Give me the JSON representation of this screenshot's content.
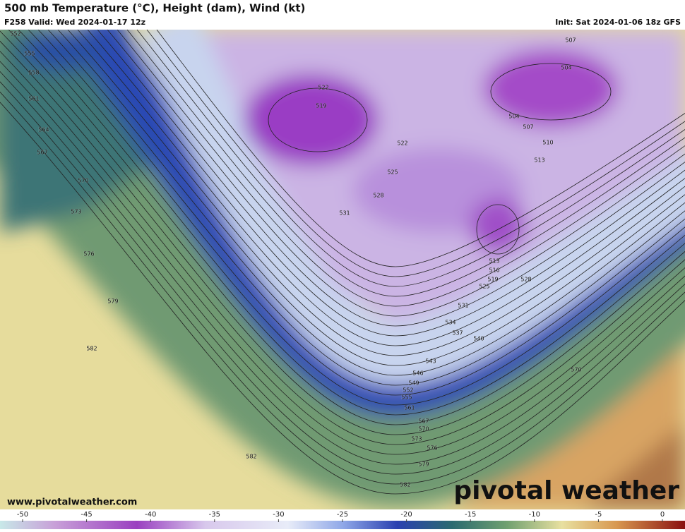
{
  "header": {
    "title": "500 mb Temperature (°C), Height (dam), Wind (kt)",
    "valid": "F258 Valid: Wed 2024-01-17 12z",
    "init": "Init: Sat 2024-01-06 18z GFS"
  },
  "map": {
    "contour_labels": [
      552,
      555,
      558,
      561,
      564,
      567,
      570,
      573,
      576,
      579,
      582,
      522,
      519,
      522,
      525,
      528,
      531,
      507,
      504,
      504,
      507,
      510,
      513,
      513,
      516,
      519,
      525,
      528,
      531,
      534,
      537,
      540,
      543,
      546,
      549,
      552,
      555,
      561,
      567,
      570,
      573,
      576,
      579,
      582,
      582,
      570
    ]
  },
  "footer": {
    "url": "www.pivotalweather.com",
    "watermark": "pivotal weather"
  },
  "colorbar": {
    "ticks": [
      -50,
      -45,
      -40,
      -35,
      -30,
      -25,
      -20,
      -15,
      -10,
      -5,
      0
    ]
  }
}
